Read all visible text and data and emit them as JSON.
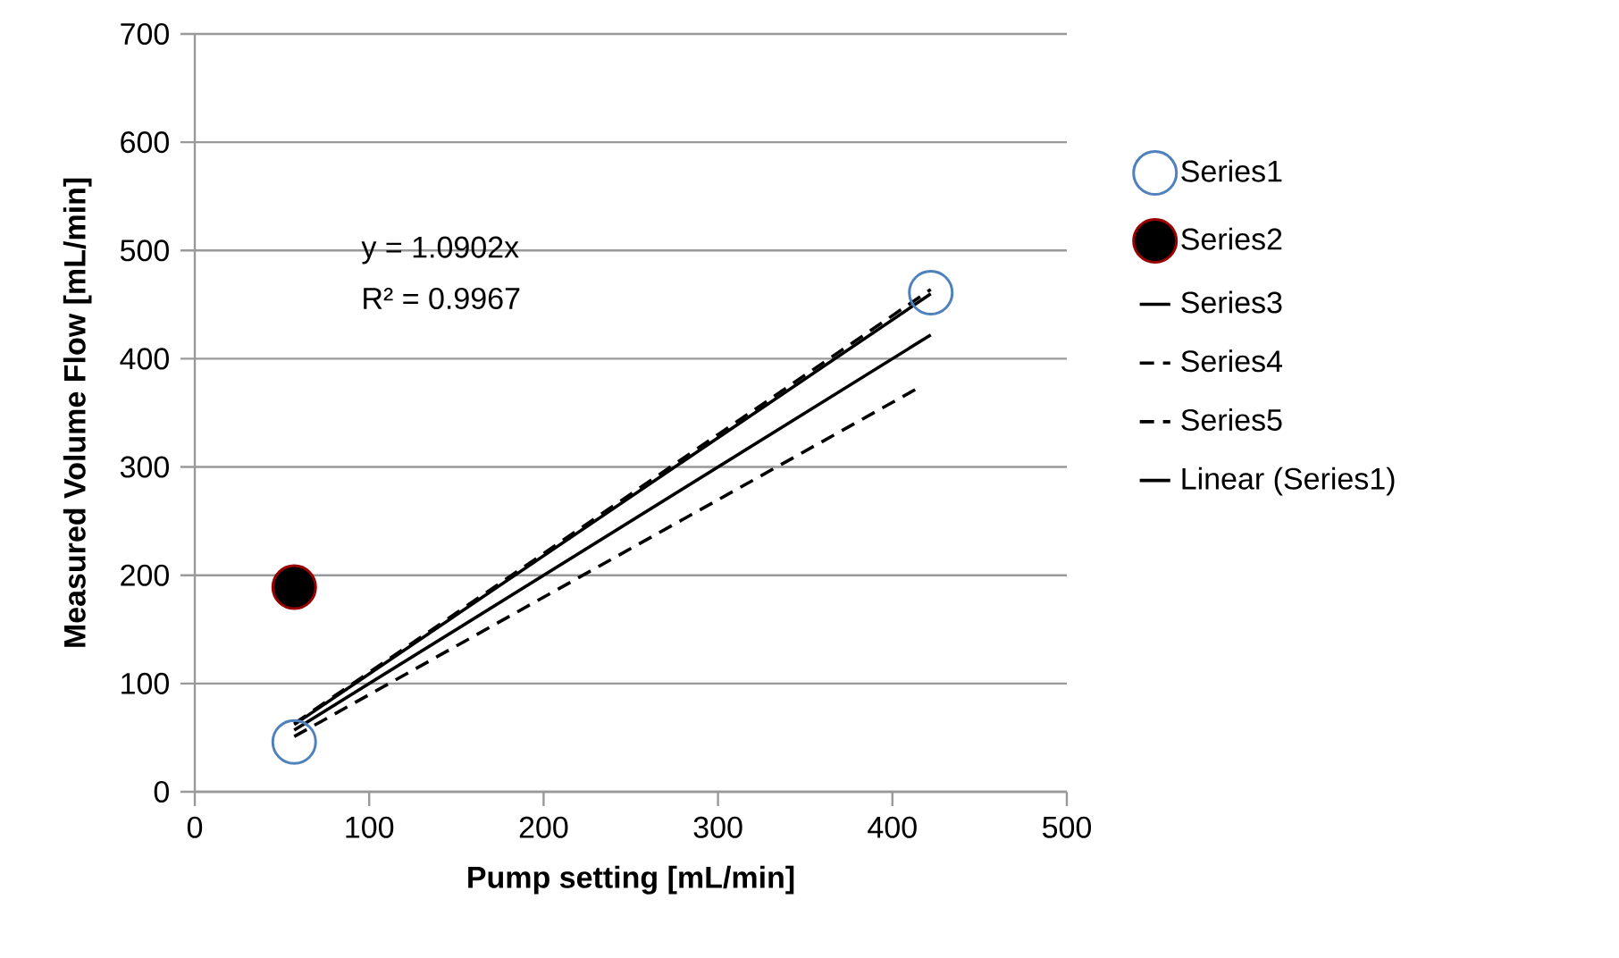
{
  "chart_data": {
    "type": "scatter",
    "xlabel": "Pump setting [mL/min]",
    "ylabel": "Measured Volume Flow [mL/min]",
    "xlim": [
      0,
      500
    ],
    "xticks": [
      0,
      100,
      200,
      300,
      400,
      500
    ],
    "ylim": [
      0,
      700
    ],
    "yticks": [
      0,
      100,
      200,
      300,
      400,
      500,
      600,
      700
    ],
    "grid": "y",
    "legend": "right",
    "annotations": [
      "y = 1.0902x",
      "R² = 0.9967"
    ],
    "series": [
      {
        "name": "Series1",
        "marker": "circle",
        "color": "#4f81bd",
        "x": [
          57,
          422
        ],
        "values": [
          46,
          461
        ]
      },
      {
        "name": "Series2",
        "marker": "circle",
        "color": "#000000",
        "x": [
          57
        ],
        "values": [
          189
        ]
      },
      {
        "name": "Series3",
        "type": "line",
        "marker": "none",
        "line_style": "solid",
        "color": "#000000",
        "x": [
          57,
          422
        ],
        "values": [
          57,
          422
        ]
      },
      {
        "name": "Series4",
        "type": "line",
        "marker": "none",
        "line_style": "dashed",
        "color": "#000000",
        "x": [
          57,
          422
        ],
        "values": [
          63,
          464
        ]
      },
      {
        "name": "Series5",
        "type": "line",
        "marker": "none",
        "line_style": "dashed",
        "color": "#000000",
        "x": [
          57,
          417
        ],
        "values": [
          51,
          375
        ]
      },
      {
        "name": "Linear (Series1)",
        "type": "line",
        "marker": "none",
        "line_style": "solid",
        "color": "#000000",
        "x": [
          57,
          422
        ],
        "values": [
          62,
          460
        ]
      }
    ]
  }
}
